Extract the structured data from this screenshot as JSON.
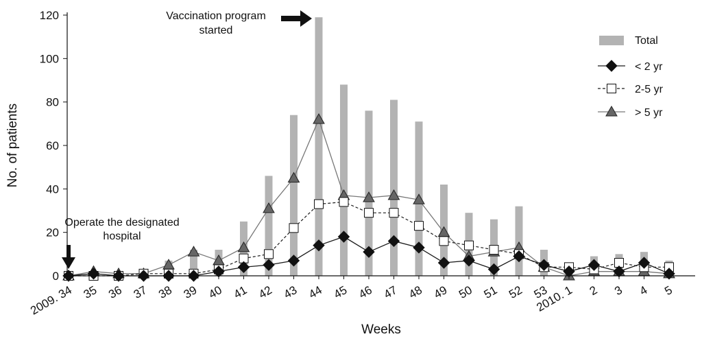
{
  "chart_data": {
    "type": "bar",
    "categories": [
      "2009. 34",
      "35",
      "36",
      "37",
      "38",
      "39",
      "40",
      "41",
      "42",
      "43",
      "44",
      "45",
      "46",
      "47",
      "48",
      "49",
      "50",
      "51",
      "52",
      "53",
      "2010. 1",
      "2",
      "3",
      "4",
      "5"
    ],
    "xlabel": "Weeks",
    "ylabel": "No. of patients",
    "ylim": [
      0,
      120
    ],
    "yticks": [
      0,
      20,
      40,
      60,
      80,
      100,
      120
    ],
    "grid": false,
    "legend_position": "top-right",
    "series": [
      {
        "name": "Total",
        "kind": "bar",
        "color": "#b3b3b3",
        "values": [
          0,
          2,
          1,
          2,
          7,
          12,
          12,
          25,
          46,
          74,
          119,
          88,
          76,
          81,
          71,
          42,
          29,
          26,
          32,
          12,
          4,
          9,
          10,
          11,
          7
        ]
      },
      {
        "name": "< 2 yr",
        "kind": "line",
        "marker": "diamond",
        "line_style": "solid",
        "color": "#1a1a1a",
        "values": [
          0,
          1,
          0,
          0,
          0,
          0,
          2,
          4,
          5,
          7,
          14,
          18,
          11,
          16,
          13,
          6,
          7,
          3,
          9,
          5,
          2,
          5,
          2,
          6,
          1
        ]
      },
      {
        "name": "2-5 yr",
        "kind": "line",
        "marker": "square-open",
        "line_style": "dashed",
        "color": "#1a1a1a",
        "values": [
          0,
          0,
          0,
          1,
          1,
          1,
          3,
          8,
          10,
          22,
          33,
          34,
          29,
          29,
          23,
          16,
          14,
          12,
          10,
          4,
          4,
          3,
          6,
          4,
          4
        ]
      },
      {
        "name": "> 5 yr",
        "kind": "line",
        "marker": "triangle",
        "line_style": "solid",
        "color": "#777777",
        "values": [
          0,
          2,
          1,
          1,
          5,
          11,
          7,
          13,
          31,
          45,
          72,
          37,
          36,
          37,
          35,
          20,
          9,
          11,
          13,
          4,
          0,
          2,
          2,
          2,
          1
        ]
      }
    ],
    "annotations": [
      {
        "text_lines": [
          "Vaccination program",
          "started"
        ],
        "category": "44"
      },
      {
        "text_lines": [
          "Operate the designated",
          "hospital"
        ],
        "category": "2009. 34"
      }
    ]
  }
}
